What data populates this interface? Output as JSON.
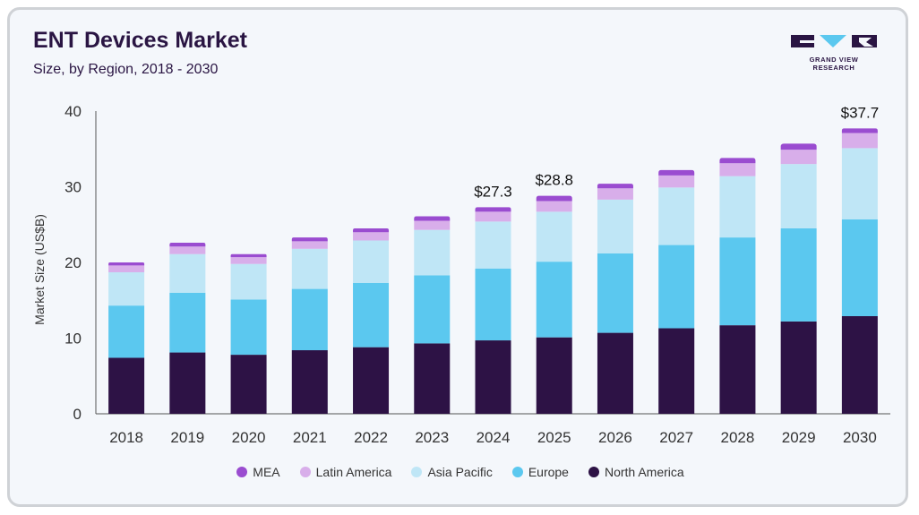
{
  "header": {
    "title": "ENT Devices Market",
    "subtitle": "Size, by Region, 2018 - 2030"
  },
  "logo": {
    "text": "GRAND VIEW RESEARCH"
  },
  "chart_data": {
    "type": "bar",
    "stacked": true,
    "categories": [
      "2018",
      "2019",
      "2020",
      "2021",
      "2022",
      "2023",
      "2024",
      "2025",
      "2026",
      "2027",
      "2028",
      "2029",
      "2030"
    ],
    "series": [
      {
        "name": "North America",
        "color": "#2d1245",
        "values": [
          7.4,
          8.1,
          7.8,
          8.4,
          8.8,
          9.3,
          9.7,
          10.1,
          10.7,
          11.3,
          11.7,
          12.2,
          12.9
        ]
      },
      {
        "name": "Europe",
        "color": "#5bc8ef",
        "values": [
          6.9,
          7.9,
          7.3,
          8.1,
          8.5,
          9.0,
          9.5,
          10.0,
          10.5,
          11.0,
          11.6,
          12.3,
          12.8
        ]
      },
      {
        "name": "Asia Pacific",
        "color": "#bfe6f6",
        "values": [
          4.4,
          5.1,
          4.7,
          5.3,
          5.6,
          6.0,
          6.2,
          6.6,
          7.1,
          7.6,
          8.1,
          8.5,
          9.4
        ]
      },
      {
        "name": "Latin America",
        "color": "#d8aeea",
        "values": [
          0.9,
          1.0,
          0.9,
          1.0,
          1.1,
          1.2,
          1.3,
          1.4,
          1.5,
          1.6,
          1.7,
          1.9,
          2.0
        ]
      },
      {
        "name": "MEA",
        "color": "#9a4cd0",
        "values": [
          0.4,
          0.5,
          0.4,
          0.5,
          0.5,
          0.6,
          0.6,
          0.7,
          0.6,
          0.7,
          0.7,
          0.8,
          0.6
        ]
      }
    ],
    "legend_order": [
      "MEA",
      "Latin America",
      "Asia Pacific",
      "Europe",
      "North America"
    ],
    "data_labels": [
      {
        "category": "2024",
        "text": "$27.3"
      },
      {
        "category": "2025",
        "text": "$28.8"
      },
      {
        "category": "2030",
        "text": "$37.7"
      }
    ],
    "ylabel": "Market Size (US$B)",
    "xlabel": "",
    "ylim": [
      0,
      40
    ],
    "yticks": [
      "0",
      "10",
      "20",
      "30",
      "40"
    ],
    "grid": false,
    "legend_position": "bottom"
  }
}
